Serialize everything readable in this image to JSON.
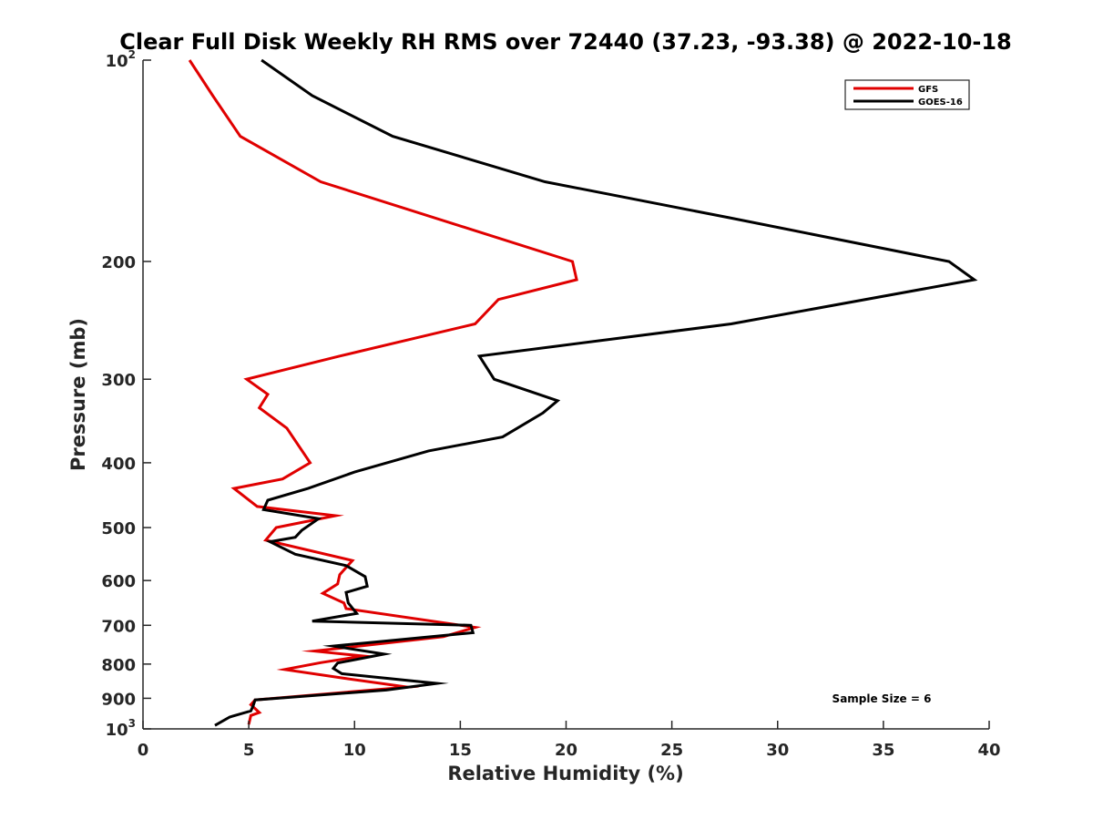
{
  "chart_data": {
    "type": "line",
    "title": "Clear Full Disk Weekly RH RMS over 72440 (37.23, -93.38) @ 2022-10-18",
    "xlabel": "Relative Humidity (%)",
    "ylabel": "Pressure (mb)",
    "xlim": [
      0,
      40
    ],
    "ylim": [
      100,
      1000
    ],
    "y_scale": "log",
    "y_reversed": true,
    "grid": false,
    "legend_position": "top-right",
    "x_ticks": [
      0,
      5,
      10,
      15,
      20,
      25,
      30,
      35,
      40
    ],
    "y_ticks": [
      {
        "value": 100,
        "base": "10",
        "exp": "2"
      },
      {
        "value": 200,
        "label": "200"
      },
      {
        "value": 300,
        "label": "300"
      },
      {
        "value": 400,
        "label": "400"
      },
      {
        "value": 500,
        "label": "500"
      },
      {
        "value": 600,
        "label": "600"
      },
      {
        "value": 700,
        "label": "700"
      },
      {
        "value": 800,
        "label": "800"
      },
      {
        "value": 900,
        "label": "900"
      },
      {
        "value": 1000,
        "base": "10",
        "exp": "3"
      }
    ],
    "annotation": "Sample Size = 6",
    "series": [
      {
        "name": "GFS",
        "color": "#e00000",
        "points": [
          [
            2.2,
            100
          ],
          [
            3.3,
            113
          ],
          [
            4.6,
            130
          ],
          [
            8.4,
            152
          ],
          [
            20.3,
            200
          ],
          [
            20.5,
            213
          ],
          [
            16.8,
            228
          ],
          [
            15.7,
            248
          ],
          [
            9.3,
            277
          ],
          [
            4.9,
            300
          ],
          [
            5.9,
            316
          ],
          [
            5.5,
            331
          ],
          [
            6.8,
            355
          ],
          [
            7.9,
            400
          ],
          [
            6.6,
            423
          ],
          [
            4.3,
            437
          ],
          [
            5.4,
            465
          ],
          [
            9.1,
            480
          ],
          [
            6.3,
            500
          ],
          [
            5.8,
            522
          ],
          [
            9.9,
            560
          ],
          [
            9.3,
            588
          ],
          [
            9.2,
            607
          ],
          [
            8.5,
            627
          ],
          [
            9.5,
            648
          ],
          [
            9.6,
            661
          ],
          [
            15.7,
            705
          ],
          [
            14.2,
            728
          ],
          [
            8.1,
            765
          ],
          [
            10.4,
            778
          ],
          [
            8.4,
            796
          ],
          [
            6.7,
            815
          ],
          [
            9.5,
            840
          ],
          [
            12.5,
            866
          ],
          [
            5.3,
            905
          ],
          [
            5.1,
            920
          ],
          [
            5.5,
            945
          ],
          [
            5.1,
            955
          ],
          [
            5.0,
            985
          ]
        ]
      },
      {
        "name": "GOES-16",
        "color": "#000000",
        "points": [
          [
            5.6,
            100
          ],
          [
            8.0,
            113
          ],
          [
            11.8,
            130
          ],
          [
            19.0,
            152
          ],
          [
            27.7,
            172
          ],
          [
            38.1,
            200
          ],
          [
            39.3,
            213
          ],
          [
            27.8,
            248
          ],
          [
            15.9,
            277
          ],
          [
            16.6,
            300
          ],
          [
            19.6,
            323
          ],
          [
            18.9,
            337
          ],
          [
            17.0,
            366
          ],
          [
            13.5,
            384
          ],
          [
            10.0,
            413
          ],
          [
            7.8,
            437
          ],
          [
            5.9,
            455
          ],
          [
            5.7,
            470
          ],
          [
            8.3,
            485
          ],
          [
            7.5,
            505
          ],
          [
            7.2,
            517
          ],
          [
            6.0,
            525
          ],
          [
            7.2,
            548
          ],
          [
            9.6,
            570
          ],
          [
            10.5,
            592
          ],
          [
            10.6,
            612
          ],
          [
            9.6,
            625
          ],
          [
            9.7,
            648
          ],
          [
            10.1,
            672
          ],
          [
            8.0,
            690
          ],
          [
            15.5,
            700
          ],
          [
            15.6,
            718
          ],
          [
            9.0,
            752
          ],
          [
            11.4,
            773
          ],
          [
            9.2,
            797
          ],
          [
            9.0,
            812
          ],
          [
            9.4,
            827
          ],
          [
            13.9,
            855
          ],
          [
            11.5,
            875
          ],
          [
            5.3,
            905
          ],
          [
            5.2,
            925
          ],
          [
            5.1,
            940
          ],
          [
            4.1,
            960
          ],
          [
            3.4,
            988
          ]
        ]
      }
    ]
  }
}
